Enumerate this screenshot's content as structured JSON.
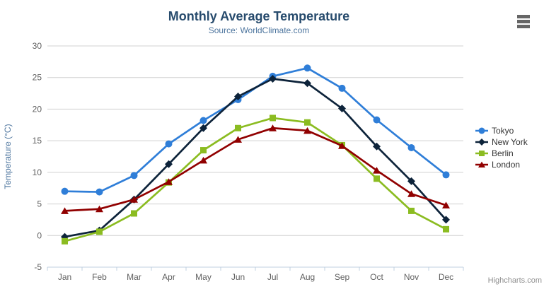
{
  "chart_data": {
    "type": "line",
    "title": "Monthly Average Temperature",
    "subtitle": "Source: WorldClimate.com",
    "categories": [
      "Jan",
      "Feb",
      "Mar",
      "Apr",
      "May",
      "Jun",
      "Jul",
      "Aug",
      "Sep",
      "Oct",
      "Nov",
      "Dec"
    ],
    "xlabel": "",
    "ylabel": "Temperature (°C)",
    "ylim": [
      -5,
      30
    ],
    "y_tick_interval": 5,
    "grid": true,
    "legend_position": "right",
    "series": [
      {
        "name": "Tokyo",
        "color": "#2f7ed8",
        "marker": "circle",
        "values": [
          7.0,
          6.9,
          9.5,
          14.5,
          18.2,
          21.5,
          25.2,
          26.5,
          23.3,
          18.3,
          13.9,
          9.6
        ]
      },
      {
        "name": "New York",
        "color": "#0d233a",
        "marker": "diamond",
        "values": [
          -0.2,
          0.8,
          5.7,
          11.3,
          17.0,
          22.0,
          24.8,
          24.1,
          20.1,
          14.1,
          8.6,
          2.5
        ]
      },
      {
        "name": "Berlin",
        "color": "#8bbc21",
        "marker": "square",
        "values": [
          -0.9,
          0.6,
          3.5,
          8.4,
          13.5,
          17.0,
          18.6,
          17.9,
          14.3,
          9.0,
          3.9,
          1.0
        ]
      },
      {
        "name": "London",
        "color": "#910000",
        "marker": "triangle",
        "values": [
          3.9,
          4.2,
          5.7,
          8.5,
          11.9,
          15.2,
          17.0,
          16.6,
          14.2,
          10.3,
          6.6,
          4.8
        ]
      }
    ]
  },
  "colors": {
    "title": "#274b6d",
    "subtitle": "#4d759e",
    "axis_title": "#4d759e",
    "axis_label": "#606060",
    "grid_line": "#d0d0d0",
    "axis_line": "#c0d0e0",
    "legend_text": "#333333",
    "hamburger": "#666666",
    "credit": "#909090"
  },
  "credits": {
    "text": "Highcharts.com"
  }
}
